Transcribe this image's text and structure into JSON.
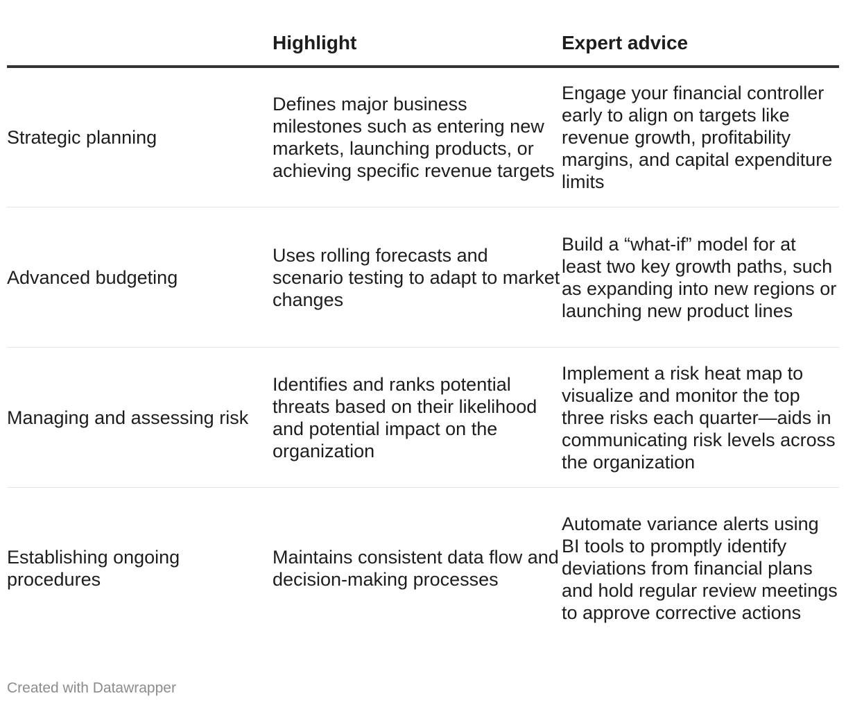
{
  "table": {
    "headers": [
      "",
      "Highlight",
      "Expert advice"
    ],
    "rows": [
      {
        "label": "Strategic planning",
        "highlight": "Defines major business milestones such as entering new markets, launching products, or achieving specific revenue targets",
        "advice": "Engage your financial controller early to align on targets like revenue growth, profitability margins, and capital expenditure limits"
      },
      {
        "label": "Advanced budgeting",
        "highlight": "Uses rolling forecasts and scenario testing to adapt to market changes",
        "advice": "Build a “what-if” model for at least two key growth paths, such as expanding into new regions or launching new product lines"
      },
      {
        "label": "Managing and assessing risk",
        "highlight": "Identifies and ranks potential threats based on their likelihood and potential impact on the organization",
        "advice": "Implement a risk heat map to visualize and monitor the top three risks each quarter—aids in communicating risk levels across the organization"
      },
      {
        "label": "Establishing ongoing procedures",
        "highlight": "Maintains consistent data flow and decision-making processes",
        "advice": "Automate variance alerts using BI tools to promptly identify deviations from financial plans and hold regular review meetings to approve corrective actions"
      }
    ]
  },
  "footer": {
    "credit": "Created with Datawrapper"
  }
}
